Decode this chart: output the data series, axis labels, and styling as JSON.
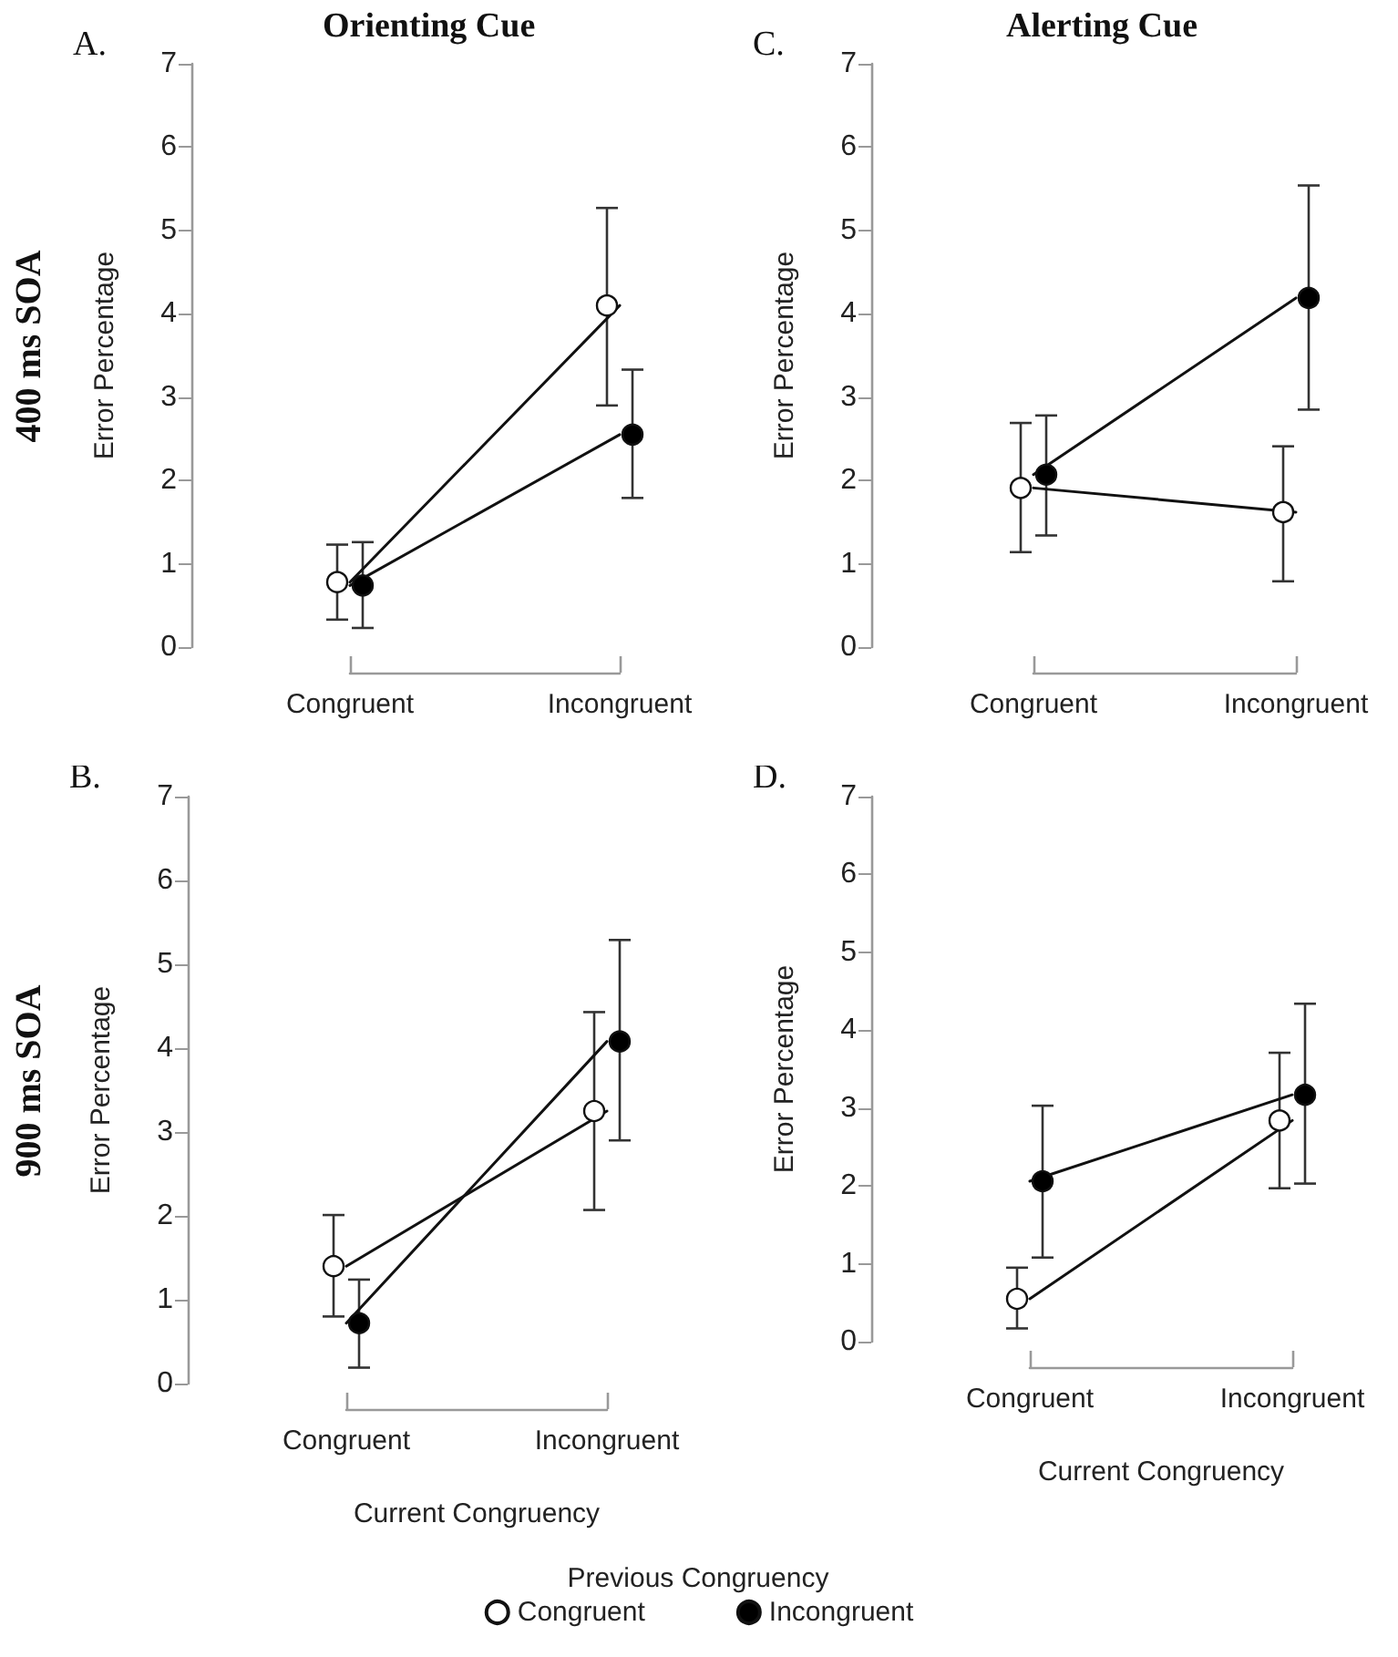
{
  "chart_data": [
    {
      "type": "line",
      "title": "Orienting Cue",
      "annotations": [
        "A.",
        "400 ms SOA"
      ],
      "ylabel": "Error Percentage",
      "categories": [
        "Congruent",
        "Incongruent"
      ],
      "ylim": [
        0,
        7
      ],
      "yticks": [
        0,
        1,
        2,
        3,
        4,
        5,
        6,
        7
      ],
      "grid": false,
      "marker": "circle",
      "line_style": "solid",
      "legend": false,
      "series": [
        {
          "color": "#ffffff",
          "values": [
            0.78,
            4.1
          ],
          "errors": [
            [
              0.33,
              1.23
            ],
            [
              2.9,
              5.27
            ]
          ]
        },
        {
          "color": "#000000",
          "values": [
            0.74,
            2.55
          ],
          "errors": [
            [
              0.23,
              1.26
            ],
            [
              1.79,
              3.33
            ]
          ]
        }
      ]
    },
    {
      "type": "line",
      "title": "Alerting Cue",
      "annotations": [
        "C."
      ],
      "ylabel": "Error Percentage",
      "categories": [
        "Congruent",
        "Incongruent"
      ],
      "ylim": [
        0,
        7
      ],
      "yticks": [
        0,
        1,
        2,
        3,
        4,
        5,
        6,
        7
      ],
      "grid": false,
      "marker": "circle",
      "line_style": "solid",
      "legend": false,
      "series": [
        {
          "color": "#ffffff",
          "values": [
            1.91,
            1.62
          ],
          "errors": [
            [
              1.14,
              2.69
            ],
            [
              0.79,
              2.41
            ]
          ]
        },
        {
          "color": "#000000",
          "values": [
            2.07,
            4.19
          ],
          "errors": [
            [
              1.34,
              2.78
            ],
            [
              2.85,
              5.54
            ]
          ]
        }
      ]
    },
    {
      "type": "line",
      "annotations": [
        "B.",
        "900 ms SOA"
      ],
      "ylabel": "Error Percentage",
      "xlabel": "Current Congruency",
      "legend_title": "Previous Congruency",
      "categories": [
        "Congruent",
        "Incongruent"
      ],
      "ylim": [
        0,
        7
      ],
      "yticks": [
        0,
        1,
        2,
        3,
        4,
        5,
        6,
        7
      ],
      "grid": false,
      "marker": "circle",
      "line_style": "solid",
      "legend": "bottom",
      "series": [
        {
          "name": "Congruent",
          "color": "#ffffff",
          "values": [
            1.4,
            3.25
          ],
          "errors": [
            [
              0.8,
              2.01
            ],
            [
              2.07,
              4.43
            ]
          ]
        },
        {
          "name": "Incongruent",
          "color": "#000000",
          "values": [
            0.72,
            4.08
          ],
          "errors": [
            [
              0.19,
              1.24
            ],
            [
              2.9,
              5.29
            ]
          ]
        }
      ]
    },
    {
      "type": "line",
      "annotations": [
        "D."
      ],
      "ylabel": "Error Percentage",
      "xlabel": "Current Congruency",
      "categories": [
        "Congruent",
        "Incongruent"
      ],
      "ylim": [
        0,
        7
      ],
      "yticks": [
        0,
        1,
        2,
        3,
        4,
        5,
        6,
        7
      ],
      "grid": false,
      "marker": "circle",
      "line_style": "solid",
      "legend": false,
      "series": [
        {
          "color": "#ffffff",
          "values": [
            0.55,
            2.84
          ],
          "errors": [
            [
              0.17,
              0.95
            ],
            [
              1.97,
              3.71
            ]
          ]
        },
        {
          "color": "#000000",
          "values": [
            2.06,
            3.17
          ],
          "errors": [
            [
              1.08,
              3.03
            ],
            [
              2.03,
              4.34
            ]
          ]
        }
      ]
    }
  ]
}
